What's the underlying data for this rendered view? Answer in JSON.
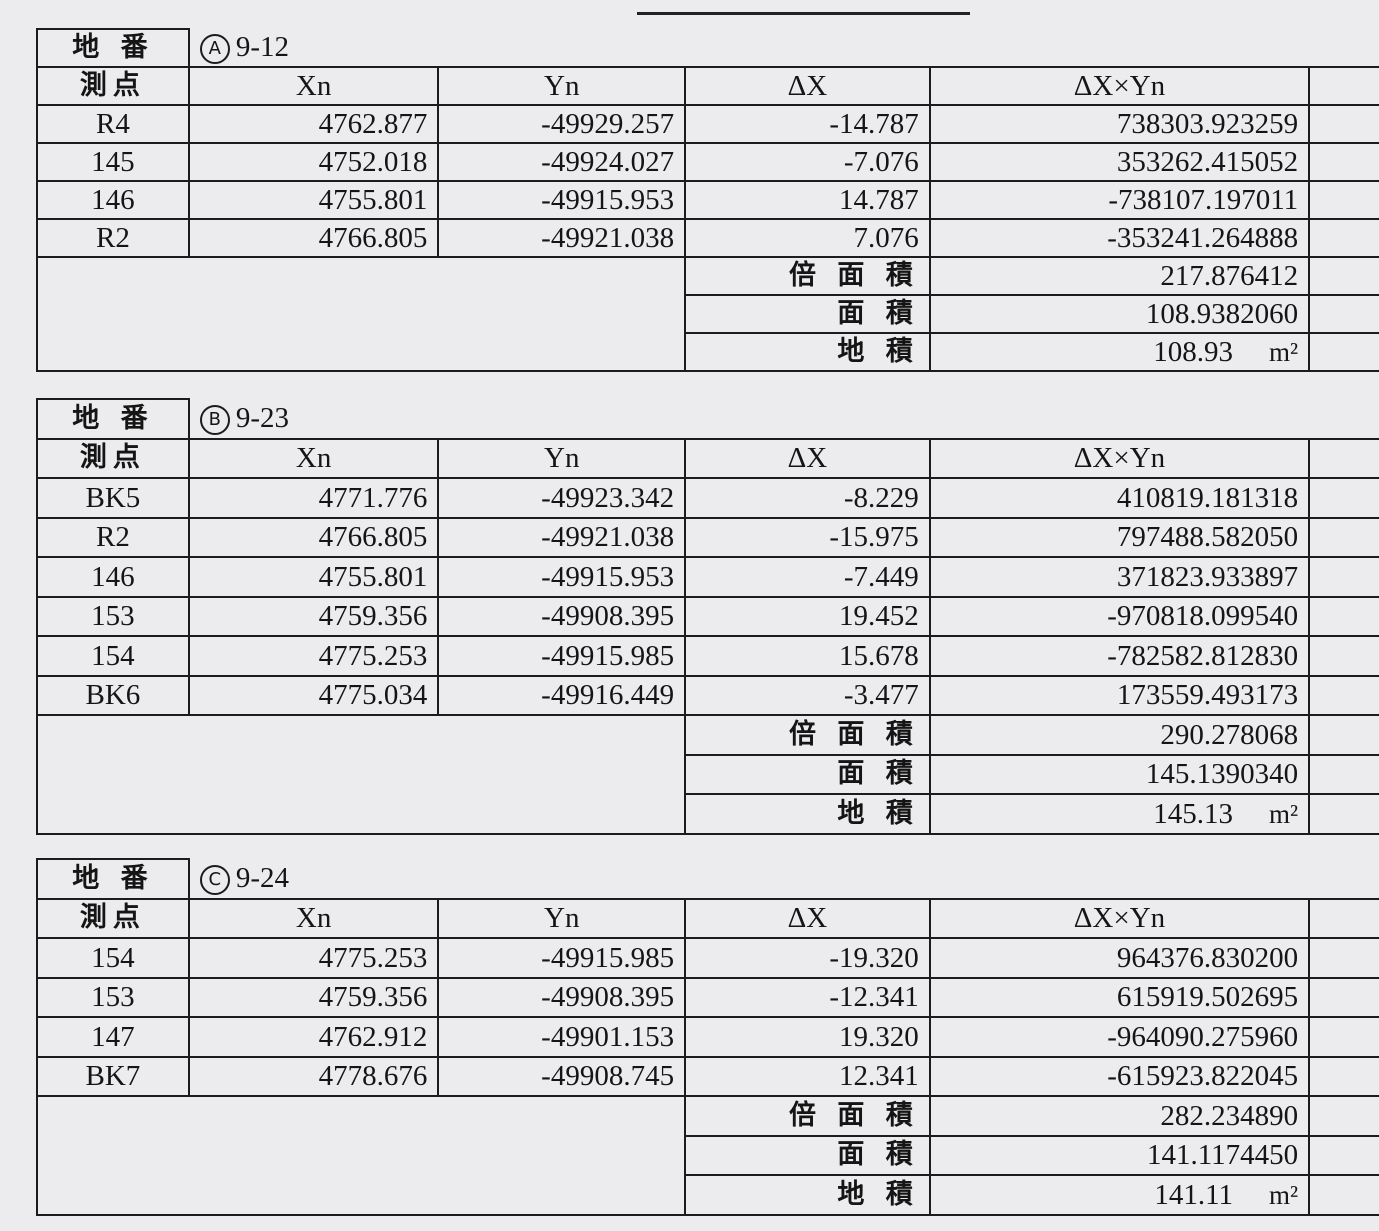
{
  "headers": {
    "parcel_label": "地 番",
    "point_label": "測点",
    "xn": "Xn",
    "yn": "Yn",
    "dx": "ΔX",
    "dxyn": "ΔX×Yn",
    "double_area_label": "倍 面 積",
    "area_label": "面 積",
    "land_area_label": "地 積",
    "unit": "m²"
  },
  "tables": [
    {
      "mark": "A",
      "parcel": "9-12",
      "rows": [
        {
          "point": "R4",
          "xn": "4762.877",
          "yn": "-49929.257",
          "dx": "-14.787",
          "dxyn": "738303.923259"
        },
        {
          "point": "145",
          "xn": "4752.018",
          "yn": "-49924.027",
          "dx": "-7.076",
          "dxyn": "353262.415052"
        },
        {
          "point": "146",
          "xn": "4755.801",
          "yn": "-49915.953",
          "dx": "14.787",
          "dxyn": "-738107.197011"
        },
        {
          "point": "R2",
          "xn": "4766.805",
          "yn": "-49921.038",
          "dx": "7.076",
          "dxyn": "-353241.264888"
        }
      ],
      "double_area": "217.876412",
      "area": "108.9382060",
      "land_area": "108.93"
    },
    {
      "mark": "B",
      "parcel": "9-23",
      "rows": [
        {
          "point": "BK5",
          "xn": "4771.776",
          "yn": "-49923.342",
          "dx": "-8.229",
          "dxyn": "410819.181318"
        },
        {
          "point": "R2",
          "xn": "4766.805",
          "yn": "-49921.038",
          "dx": "-15.975",
          "dxyn": "797488.582050"
        },
        {
          "point": "146",
          "xn": "4755.801",
          "yn": "-49915.953",
          "dx": "-7.449",
          "dxyn": "371823.933897"
        },
        {
          "point": "153",
          "xn": "4759.356",
          "yn": "-49908.395",
          "dx": "19.452",
          "dxyn": "-970818.099540"
        },
        {
          "point": "154",
          "xn": "4775.253",
          "yn": "-49915.985",
          "dx": "15.678",
          "dxyn": "-782582.812830"
        },
        {
          "point": "BK6",
          "xn": "4775.034",
          "yn": "-49916.449",
          "dx": "-3.477",
          "dxyn": "173559.493173"
        }
      ],
      "double_area": "290.278068",
      "area": "145.1390340",
      "land_area": "145.13"
    },
    {
      "mark": "C",
      "parcel": "9-24",
      "rows": [
        {
          "point": "154",
          "xn": "4775.253",
          "yn": "-49915.985",
          "dx": "-19.320",
          "dxyn": "964376.830200"
        },
        {
          "point": "153",
          "xn": "4759.356",
          "yn": "-49908.395",
          "dx": "-12.341",
          "dxyn": "615919.502695"
        },
        {
          "point": "147",
          "xn": "4762.912",
          "yn": "-49901.153",
          "dx": "19.320",
          "dxyn": "-964090.275960"
        },
        {
          "point": "BK7",
          "xn": "4778.676",
          "yn": "-49908.745",
          "dx": "12.341",
          "dxyn": "-615923.822045"
        }
      ],
      "double_area": "282.234890",
      "area": "141.1174450",
      "land_area": "141.11"
    }
  ]
}
